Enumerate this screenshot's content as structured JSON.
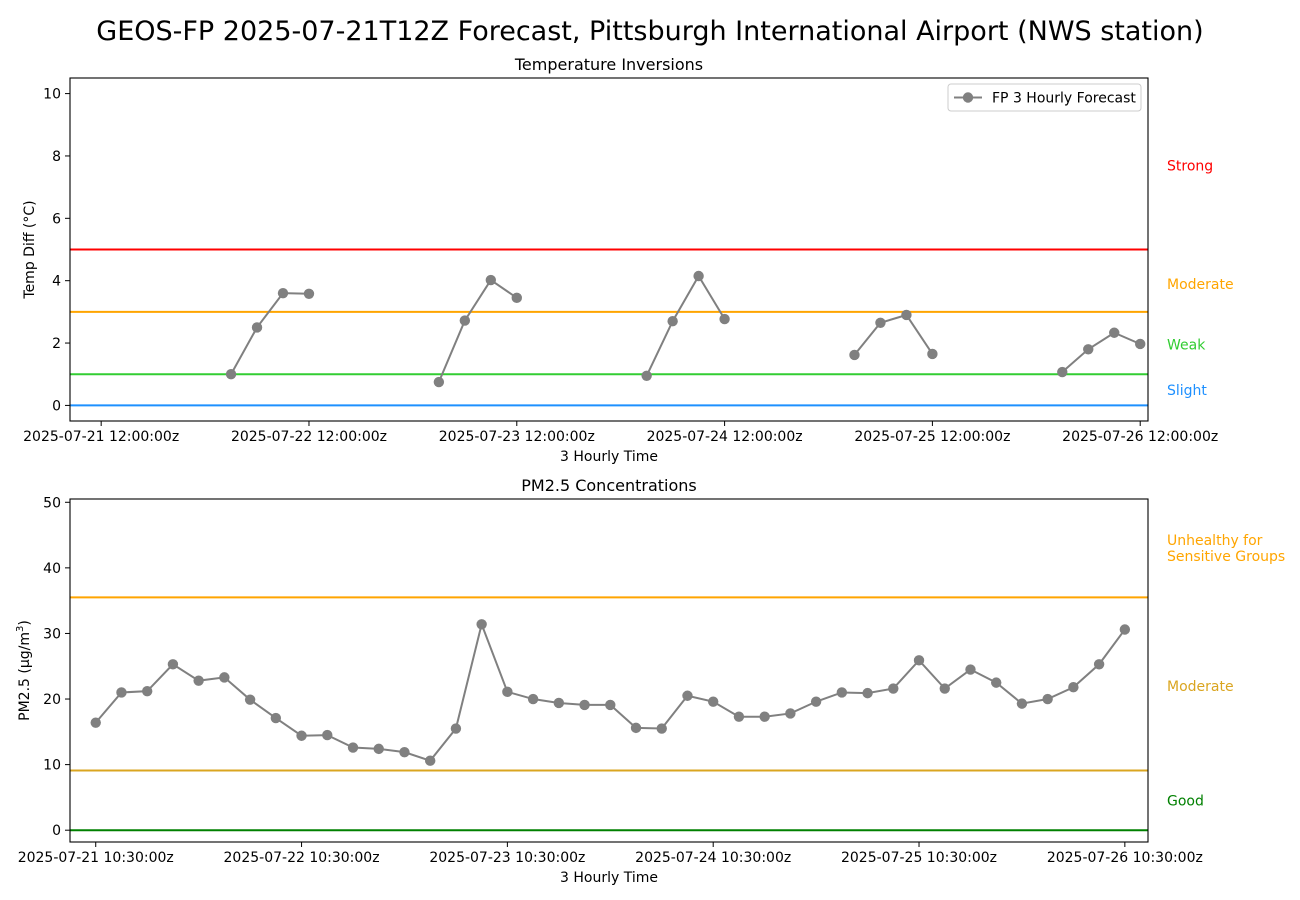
{
  "figure": {
    "suptitle": "GEOS-FP 2025-07-21T12Z Forecast, Pittsburgh International Airport (NWS station)"
  },
  "chart_data": [
    {
      "type": "line",
      "title": "Temperature Inversions",
      "xlabel": "3 Hourly Time",
      "ylabel": "Temp Diff (°C)",
      "ylim": [
        -0.5,
        10.5
      ],
      "yticks": [
        0,
        2,
        4,
        6,
        8,
        10
      ],
      "x_start": "2025-07-21 12:00:00z",
      "x_step_hours": 3,
      "xlim_index": [
        -1.2,
        40.3
      ],
      "xticks": [
        {
          "index": 0,
          "label": "2025-07-21 12:00:00z"
        },
        {
          "index": 8,
          "label": "2025-07-22 12:00:00z"
        },
        {
          "index": 16,
          "label": "2025-07-23 12:00:00z"
        },
        {
          "index": 24,
          "label": "2025-07-24 12:00:00z"
        },
        {
          "index": 32,
          "label": "2025-07-25 12:00:00z"
        },
        {
          "index": 40,
          "label": "2025-07-26 12:00:00z"
        }
      ],
      "legend": {
        "location": "upper right",
        "entries": [
          "FP 3 Hourly Forecast"
        ]
      },
      "series": [
        {
          "name": "FP 3 Hourly Forecast",
          "color": "#808080",
          "segments": [
            [
              {
                "index": 5,
                "y": 1.0
              },
              {
                "index": 6,
                "y": 2.5
              },
              {
                "index": 7,
                "y": 3.6
              },
              {
                "index": 8,
                "y": 3.58
              }
            ],
            [
              {
                "index": 13,
                "y": 0.75
              },
              {
                "index": 14,
                "y": 2.72
              },
              {
                "index": 15,
                "y": 4.02
              },
              {
                "index": 16,
                "y": 3.45
              }
            ],
            [
              {
                "index": 21,
                "y": 0.95
              },
              {
                "index": 22,
                "y": 2.7
              },
              {
                "index": 23,
                "y": 4.15
              },
              {
                "index": 24,
                "y": 2.77
              }
            ],
            [
              {
                "index": 29,
                "y": 1.62
              },
              {
                "index": 30,
                "y": 2.65
              },
              {
                "index": 31,
                "y": 2.9
              },
              {
                "index": 32,
                "y": 1.65
              }
            ],
            [
              {
                "index": 37,
                "y": 1.07
              },
              {
                "index": 38,
                "y": 1.8
              },
              {
                "index": 39,
                "y": 2.33
              },
              {
                "index": 40,
                "y": 1.97
              }
            ]
          ]
        }
      ],
      "thresholds": [
        {
          "y": 0,
          "color": "#1E90FF"
        },
        {
          "y": 1,
          "color": "#32CD32"
        },
        {
          "y": 3,
          "color": "#FFA500"
        },
        {
          "y": 5,
          "color": "#FF0000"
        }
      ],
      "category_labels": [
        {
          "label": "Strong",
          "y": 7.7,
          "color": "#FF0000"
        },
        {
          "label": "Moderate",
          "y": 3.9,
          "color": "#FFA500"
        },
        {
          "label": "Weak",
          "y": 1.95,
          "color": "#32CD32"
        },
        {
          "label": "Slight",
          "y": 0.5,
          "color": "#1E90FF"
        }
      ]
    },
    {
      "type": "line",
      "title": "PM2.5 Concentrations",
      "xlabel": "3 Hourly Time",
      "ylabel": "PM2.5 (µg/m",
      "ylabel_sup": "3",
      "ylabel_close": ")",
      "ylim": [
        -1.8,
        50.5
      ],
      "yticks": [
        0,
        10,
        20,
        30,
        40,
        50
      ],
      "x_start": "2025-07-21 10:30:00z",
      "x_step_hours": 3,
      "xlim_index": [
        -1.0,
        40.9
      ],
      "xticks": [
        {
          "index": 0,
          "label": "2025-07-21 10:30:00z"
        },
        {
          "index": 8,
          "label": "2025-07-22 10:30:00z"
        },
        {
          "index": 16,
          "label": "2025-07-23 10:30:00z"
        },
        {
          "index": 24,
          "label": "2025-07-24 10:30:00z"
        },
        {
          "index": 32,
          "label": "2025-07-25 10:30:00z"
        },
        {
          "index": 40,
          "label": "2025-07-26 10:30:00z"
        }
      ],
      "series": [
        {
          "name": "FP 3 Hourly Forecast",
          "color": "#808080",
          "values": [
            16.4,
            21.0,
            21.2,
            25.3,
            22.8,
            23.3,
            19.9,
            17.1,
            14.4,
            14.5,
            12.6,
            12.4,
            11.9,
            10.6,
            15.5,
            31.4,
            21.1,
            20.0,
            19.4,
            19.1,
            19.1,
            15.6,
            15.5,
            20.5,
            19.6,
            17.3,
            17.3,
            17.8,
            19.6,
            21.0,
            20.9,
            21.6,
            25.9,
            21.6,
            24.5,
            22.5,
            19.3,
            20.0,
            21.8,
            25.3,
            30.6
          ]
        }
      ],
      "thresholds": [
        {
          "y": 0,
          "color": "#008000"
        },
        {
          "y": 9.1,
          "color": "#DAA520"
        },
        {
          "y": 35.5,
          "color": "#FFA500"
        }
      ],
      "category_labels": [
        {
          "label": "Unhealthy for",
          "label2": "Sensitive Groups",
          "y": 43.5,
          "color": "#FFA500"
        },
        {
          "label": "Moderate",
          "y": 22.0,
          "color": "#DAA520"
        },
        {
          "label": "Good",
          "y": 4.5,
          "color": "#008000"
        }
      ]
    }
  ]
}
